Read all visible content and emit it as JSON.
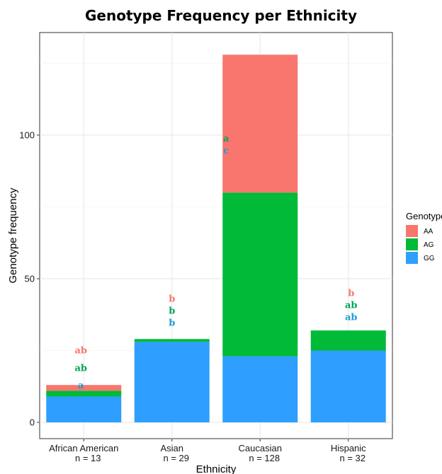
{
  "chart_data": {
    "type": "bar",
    "stacked": true,
    "title": "Genotype Frequency per Ethnicity",
    "xlabel": "Ethnicity",
    "ylabel": "Genotype frequency",
    "ylim": [
      0,
      135
    ],
    "yticks": [
      0,
      50,
      100
    ],
    "grid": true,
    "legend_position": "right",
    "categories": [
      "African American",
      "Asian",
      "Caucasian",
      "Hispanic"
    ],
    "category_counts": [
      "n = 13",
      "n = 29",
      "n = 128",
      "n = 32"
    ],
    "legend_title": "Genotype",
    "series": [
      {
        "name": "GG",
        "color": "#2e9fff",
        "values": [
          9,
          28,
          23,
          25
        ]
      },
      {
        "name": "AG",
        "color": "#00ba38",
        "values": [
          2,
          1,
          57,
          7
        ]
      },
      {
        "name": "AA",
        "color": "#f8766d",
        "values": [
          2,
          0,
          48,
          0
        ]
      }
    ],
    "legend_order": [
      "AA",
      "AG",
      "GG"
    ],
    "annotations": [
      {
        "category": "African American",
        "AA": "ab",
        "AG": "ab",
        "GG": "a"
      },
      {
        "category": "Asian",
        "AA": "b",
        "AG": "b",
        "GG": "b"
      },
      {
        "category": "Caucasian",
        "AA": "a",
        "AG": "a",
        "GG": "c"
      },
      {
        "category": "Hispanic",
        "AA": "b",
        "AG": "ab",
        "GG": "ab"
      }
    ],
    "annotation_colors": {
      "AA": "#f8766d",
      "AG": "#00a65a",
      "GG": "#1e9bd7"
    }
  }
}
